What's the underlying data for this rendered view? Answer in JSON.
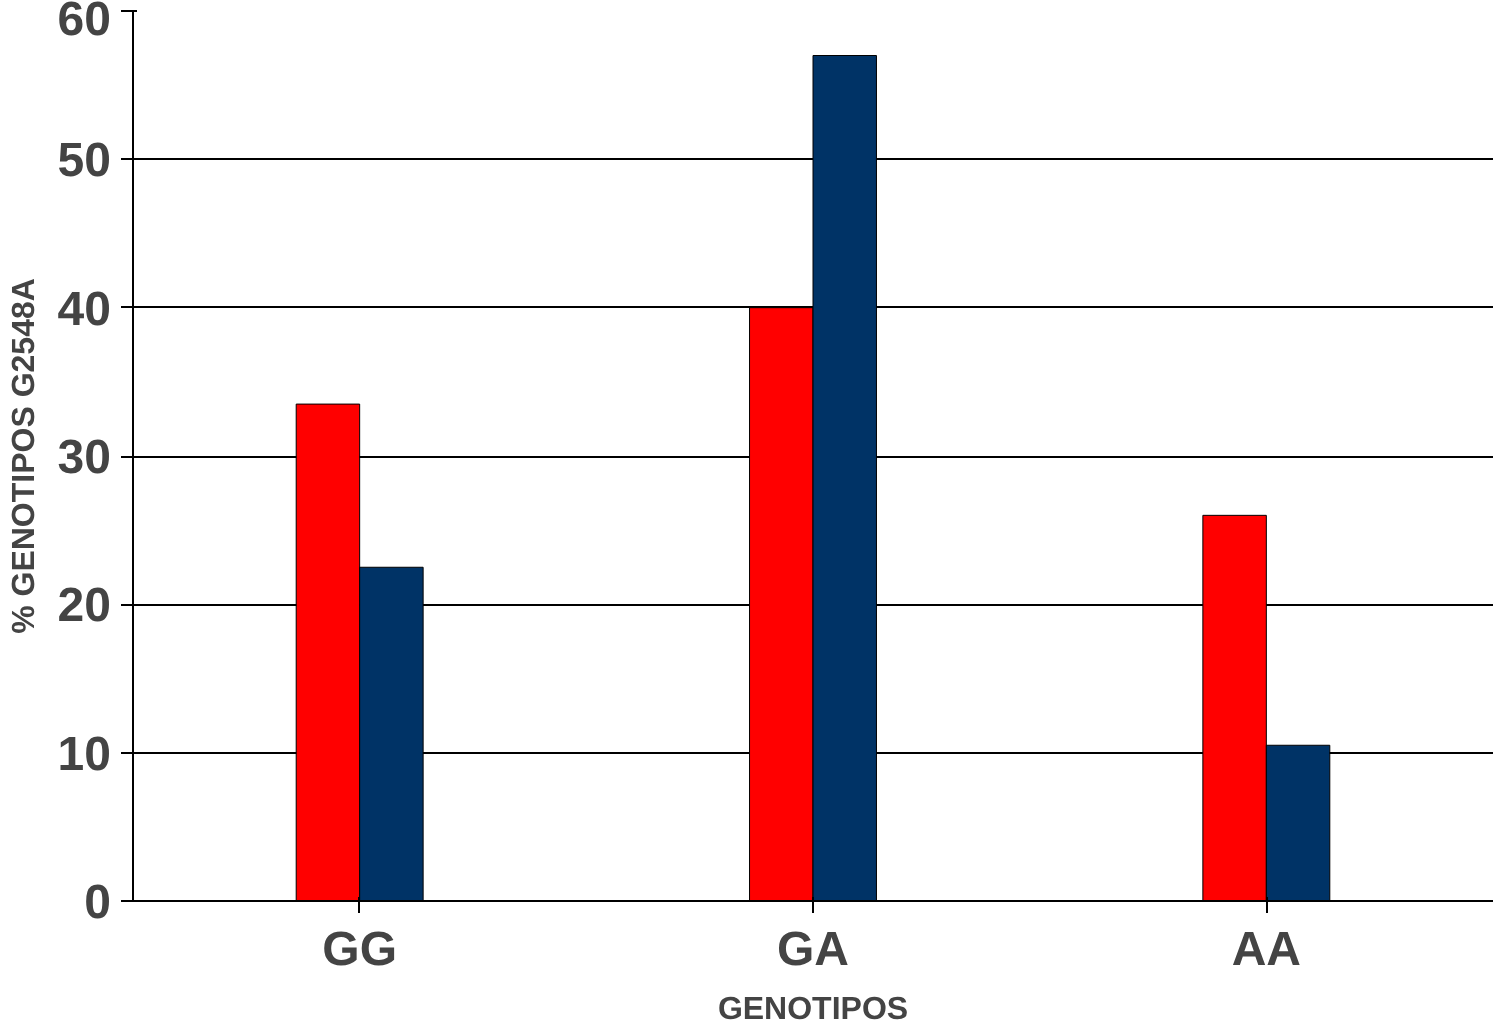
{
  "chart_data": {
    "type": "bar",
    "xlabel": "GENOTIPOS",
    "ylabel": "% GENOTIPOS G2548A",
    "categories": [
      "GG",
      "GA",
      "AA"
    ],
    "series": [
      {
        "color": "#ff0000",
        "values": [
          33.5,
          40,
          26
        ]
      },
      {
        "color": "#003366",
        "values": [
          22.5,
          57,
          10.5
        ]
      }
    ],
    "ylim": [
      0,
      60
    ],
    "yticks": [
      0,
      10,
      20,
      30,
      40,
      50,
      60
    ],
    "grid": "y"
  }
}
